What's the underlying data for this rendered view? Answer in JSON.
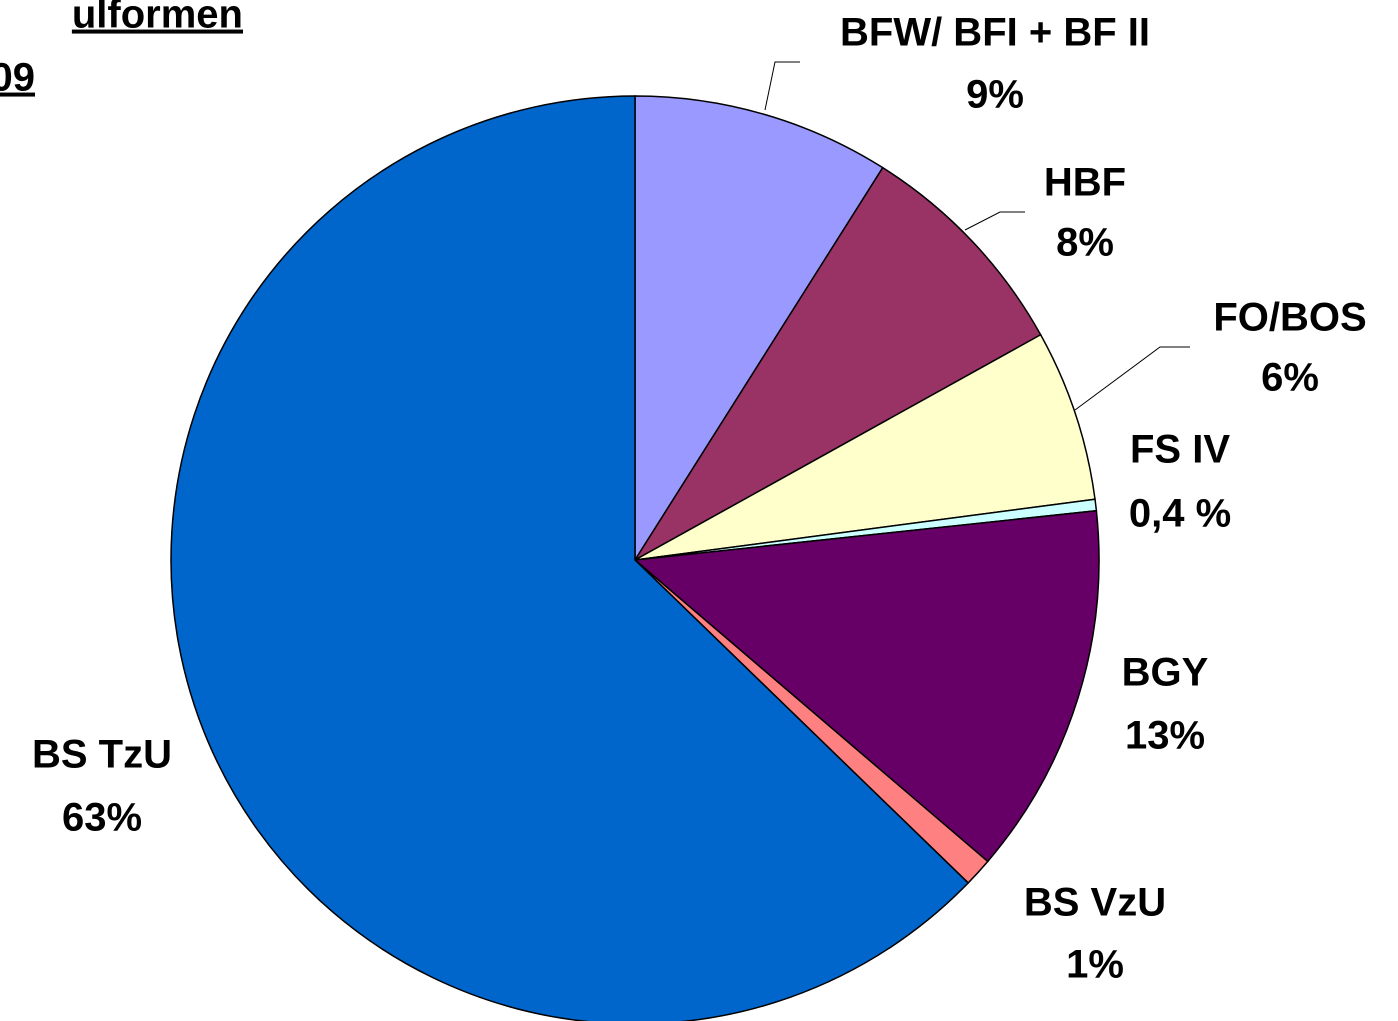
{
  "chart_data": {
    "type": "pie",
    "title": [
      "ulformen",
      "09"
    ],
    "categories": [
      "BFW/ BFI + BF II",
      "HBF",
      "FO/BOS",
      "FS IV",
      "BGY",
      "BS VzU",
      "BS TzU"
    ],
    "values": [
      9,
      8,
      6,
      0.4,
      13,
      1,
      63
    ],
    "value_labels": [
      "9%",
      "8%",
      "6%",
      "0,4 %",
      "13%",
      "1%",
      "63%"
    ],
    "colors": [
      "#9999ff",
      "#993366",
      "#ffffcc",
      "#ccffff",
      "#660066",
      "#ff8080",
      "#0066cc"
    ]
  }
}
